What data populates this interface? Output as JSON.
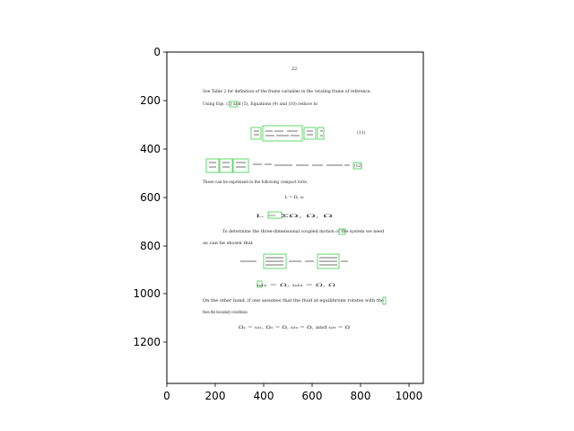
{
  "axes": {
    "x_ticks": [
      "0",
      "200",
      "400",
      "600",
      "800",
      "1000"
    ],
    "y_ticks": [
      "0",
      "200",
      "400",
      "600",
      "800",
      "1000",
      "1200"
    ],
    "x_range": [
      0,
      1060
    ],
    "y_range": [
      1370,
      0
    ]
  },
  "document": {
    "page_number": "22",
    "paragraph_1_line_1": "See Table 2 for definition of the frame variables in the rotating frame of reference.",
    "paragraph_1_line_2": "Using Eqs. (3) and (5), Equations (9) and (10) reduce to",
    "equation_1_number": "(11)",
    "equation_2_number": "(12)",
    "paragraph_2": "These can be expressed in the following compact form",
    "equation_3": "L = Ω, ω",
    "equation_4": "L = ΣΩ, Ω, Ω",
    "paragraph_3_line_1": "To determine the three-dimensional coupled motion of the system we need",
    "paragraph_3_line_2": "as can be shown that",
    "equation_5": "Ω₁ = a Ω₂ ω",
    "equation_6": "ω₁ = Ω, ω₂ = Ω, Ω",
    "paragraph_4_line_1": "On the other hand, if one assumes that the fluid at equilibrium rotates with the",
    "paragraph_4_line_2": "then the boundary conditions",
    "equation_7": "Ω₁ = ω₁, Ω₂ = Ω, ω₂ = Ω, and ω₃ = Ω"
  },
  "colors": {
    "highlight_box": "#3cd04a",
    "frame": "#000000"
  }
}
